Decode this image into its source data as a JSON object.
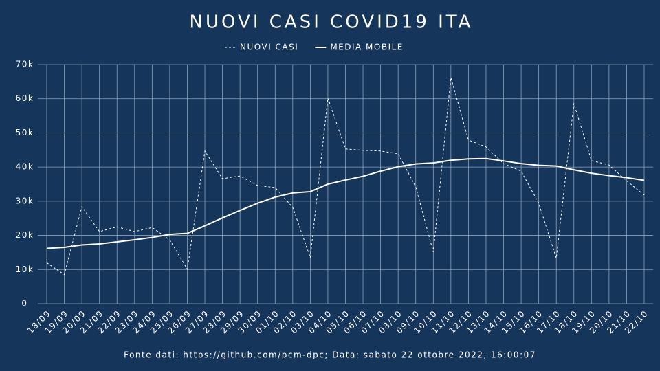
{
  "chart_data": {
    "type": "line",
    "title": "NUOVI CASI COVID19 ITA",
    "footer": "Fonte dati: https://github.com/pcm-dpc; Data: sabato 22 ottobre 2022, 16:00:07",
    "categories": [
      "18/09",
      "19/09",
      "20/09",
      "21/09",
      "22/09",
      "23/09",
      "24/09",
      "25/09",
      "26/09",
      "27/09",
      "28/09",
      "29/09",
      "30/09",
      "01/10",
      "02/10",
      "03/10",
      "04/10",
      "05/10",
      "06/10",
      "07/10",
      "08/10",
      "09/10",
      "10/10",
      "11/10",
      "12/10",
      "13/10",
      "14/10",
      "15/10",
      "16/10",
      "17/10",
      "18/10",
      "19/10",
      "20/10",
      "21/10",
      "22/10"
    ],
    "series": [
      {
        "name": "NUOVI CASI",
        "color": "#ffffff",
        "style": "dashed",
        "values": [
          12000,
          8500,
          28400,
          21100,
          22500,
          21100,
          22300,
          18700,
          10100,
          44700,
          36600,
          37400,
          34600,
          34000,
          28200,
          13500,
          60200,
          45300,
          44900,
          44700,
          43900,
          34200,
          15100,
          66200,
          47900,
          45900,
          41000,
          38800,
          29400,
          13300,
          58600,
          41900,
          40600,
          36000,
          31800
        ]
      },
      {
        "name": "MEDIA MOBILE",
        "color": "#ffffff",
        "style": "solid",
        "values": [
          16200,
          16500,
          17200,
          17500,
          18100,
          18700,
          19400,
          20300,
          20600,
          22800,
          25100,
          27300,
          29400,
          31200,
          32400,
          32800,
          35000,
          36200,
          37300,
          38800,
          40100,
          40900,
          41200,
          42000,
          42400,
          42500,
          41800,
          41000,
          40500,
          40300,
          39200,
          38200,
          37500,
          36900,
          36100
        ]
      }
    ],
    "ylim": [
      0,
      70000
    ],
    "yticks": [
      0,
      {
        "value": 10000,
        "label": "10k"
      },
      {
        "value": 20000,
        "label": "20k"
      },
      {
        "value": 30000,
        "label": "30k"
      },
      {
        "value": 40000,
        "label": "40k"
      },
      {
        "value": 50000,
        "label": "50k"
      },
      {
        "value": 60000,
        "label": "60k"
      },
      {
        "value": 70000,
        "label": "70k"
      }
    ],
    "grid": true
  }
}
